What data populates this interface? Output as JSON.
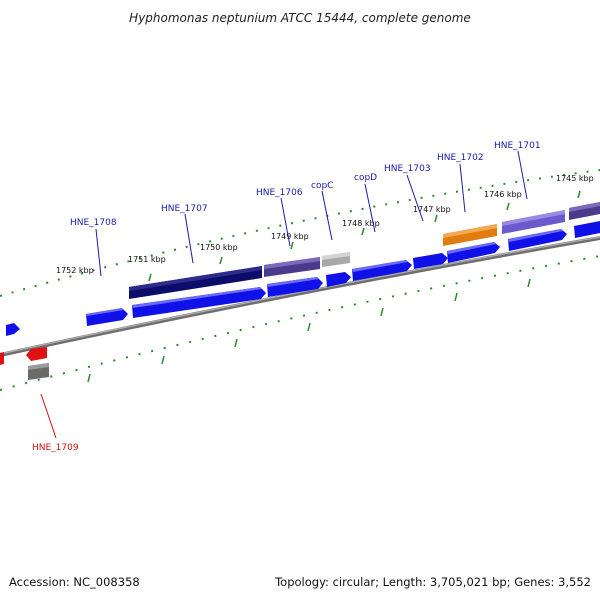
{
  "title": "Hyphomonas neptunium ATCC 15444, complete genome",
  "accession": "Accession: NC_008358",
  "summary": "Topology: circular; Length: 3,705,021 bp; Genes: 3,552",
  "colors": {
    "backbone": "#8a8a8a",
    "tick": "#2a8a2a",
    "forward_cds": "#1010e8",
    "reverse_cds": "#e01010",
    "label_blue": "#1a1aa8",
    "label_red": "#cc1010"
  },
  "kbp_ticks": [
    "1752 kbp",
    "1751 kbp",
    "1750 kbp",
    "1749 kbp",
    "1748 kbp",
    "1747 kbp",
    "1746 kbp",
    "1745 kbp"
  ],
  "gene_labels": [
    "HNE_1708",
    "HNE_1707",
    "HNE_1706",
    "copC",
    "copD",
    "HNE_1703",
    "HNE_1702",
    "HNE_1701",
    "HNE_1709"
  ]
}
